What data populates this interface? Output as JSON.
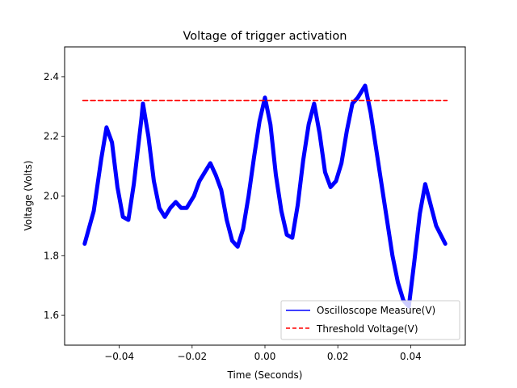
{
  "chart_data": {
    "type": "line",
    "title": "Voltage of trigger activation",
    "xlabel": "Time (Seconds)",
    "ylabel": "Voltage (Volts)",
    "xlim": [
      -0.055,
      0.055
    ],
    "ylim": [
      1.5,
      2.5
    ],
    "xticks": [
      -0.04,
      -0.02,
      0.0,
      0.02,
      0.04
    ],
    "xtick_labels": [
      "−0.04",
      "−0.02",
      "0.00",
      "0.02",
      "0.04"
    ],
    "yticks": [
      1.6,
      1.8,
      2.0,
      2.2,
      2.4
    ],
    "ytick_labels": [
      "1.6",
      "1.8",
      "2.0",
      "2.2",
      "2.4"
    ],
    "grid": false,
    "legend_position": "lower-right",
    "series": [
      {
        "name": "Oscilloscope Measure(V)",
        "color": "#0000ff",
        "style": "solid",
        "x": [
          -0.0495,
          -0.047,
          -0.045,
          -0.0435,
          -0.042,
          -0.0405,
          -0.039,
          -0.0375,
          -0.036,
          -0.034,
          -0.0335,
          -0.032,
          -0.0305,
          -0.029,
          -0.0275,
          -0.026,
          -0.0245,
          -0.023,
          -0.0215,
          -0.0195,
          -0.018,
          -0.0165,
          -0.015,
          -0.0135,
          -0.012,
          -0.0105,
          -0.009,
          -0.0075,
          -0.006,
          -0.0045,
          -0.003,
          -0.0015,
          0.0,
          0.0015,
          0.003,
          0.0045,
          0.006,
          0.0075,
          0.009,
          0.0105,
          0.012,
          0.0135,
          0.015,
          0.0165,
          0.018,
          0.0195,
          0.021,
          0.0225,
          0.024,
          0.0255,
          0.0275,
          0.029,
          0.0305,
          0.032,
          0.0335,
          0.035,
          0.0365,
          0.038,
          0.0395,
          0.041,
          0.0425,
          0.044,
          0.0455,
          0.047,
          0.0495
        ],
        "y": [
          1.84,
          1.95,
          2.12,
          2.23,
          2.18,
          2.03,
          1.93,
          1.92,
          2.04,
          2.25,
          2.31,
          2.2,
          2.05,
          1.96,
          1.93,
          1.96,
          1.98,
          1.96,
          1.96,
          2.0,
          2.05,
          2.08,
          2.11,
          2.07,
          2.02,
          1.92,
          1.85,
          1.83,
          1.89,
          2.0,
          2.13,
          2.25,
          2.33,
          2.24,
          2.07,
          1.95,
          1.87,
          1.86,
          1.97,
          2.12,
          2.24,
          2.31,
          2.21,
          2.08,
          2.03,
          2.05,
          2.11,
          2.22,
          2.31,
          2.33,
          2.37,
          2.28,
          2.16,
          2.04,
          1.92,
          1.8,
          1.71,
          1.65,
          1.63,
          1.78,
          1.94,
          2.04,
          1.97,
          1.9,
          1.84
        ]
      },
      {
        "name": "Threshold Voltage(V)",
        "color": "#ff0000",
        "style": "dashed",
        "x": [
          -0.05,
          0.05
        ],
        "y": [
          2.32,
          2.32
        ]
      }
    ]
  }
}
